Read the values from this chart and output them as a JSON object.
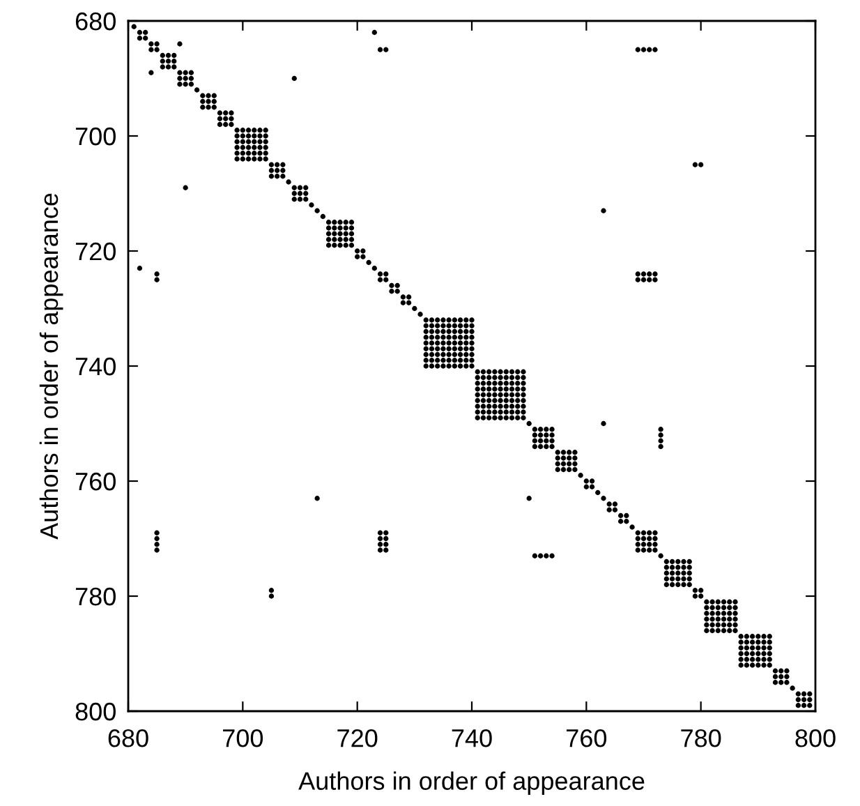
{
  "chart_data": {
    "type": "scatter",
    "xlabel": "Authors in order of appearance",
    "ylabel": "Authors in order of appearance",
    "xlim": [
      680,
      800
    ],
    "ylim": [
      800,
      680
    ],
    "xticks": [
      680,
      700,
      720,
      740,
      760,
      780,
      800
    ],
    "yticks": [
      680,
      700,
      720,
      740,
      760,
      780,
      800
    ],
    "marker": "circle",
    "series": [
      {
        "color": "#000000",
        "x": [
          681,
          682,
          683,
          682,
          683,
          684,
          685,
          684,
          685,
          692,
          708,
          712,
          713,
          714,
          720,
          721,
          720,
          721,
          722,
          723,
          724,
          725,
          724,
          725,
          726,
          727,
          726,
          727,
          728,
          729,
          728,
          729,
          730,
          731,
          750,
          759,
          760,
          761,
          760,
          761,
          762,
          763,
          764,
          765,
          764,
          765,
          766,
          767,
          766,
          767,
          768,
          773,
          779,
          780,
          779,
          780,
          796
        ],
        "values": [
          681,
          682,
          682,
          683,
          683,
          684,
          684,
          685,
          685,
          692,
          708,
          712,
          713,
          714,
          720,
          720,
          721,
          721,
          722,
          723,
          724,
          724,
          725,
          725,
          726,
          726,
          727,
          727,
          728,
          728,
          729,
          729,
          730,
          731,
          750,
          759,
          760,
          760,
          761,
          761,
          762,
          763,
          764,
          764,
          765,
          765,
          766,
          766,
          767,
          767,
          768,
          773,
          779,
          779,
          780,
          780,
          796
        ]
      },
      {
        "color": "#000000",
        "x": [
          689,
          684,
          709,
          690,
          723,
          682,
          724,
          725,
          685,
          685,
          769,
          770,
          771,
          772,
          685,
          685,
          685,
          685,
          779,
          780,
          705,
          705,
          763,
          713,
          769,
          770,
          771,
          772,
          769,
          770,
          771,
          772,
          724,
          724,
          724,
          724,
          725,
          725,
          725,
          725,
          763,
          750,
          773,
          773,
          773,
          773,
          751,
          752,
          753,
          754
        ],
        "values": [
          684,
          689,
          690,
          709,
          682,
          723,
          685,
          685,
          724,
          725,
          685,
          685,
          685,
          685,
          769,
          770,
          771,
          772,
          705,
          705,
          779,
          780,
          713,
          763,
          724,
          724,
          724,
          724,
          725,
          725,
          725,
          725,
          769,
          770,
          771,
          772,
          769,
          770,
          771,
          772,
          750,
          763,
          751,
          752,
          753,
          754,
          773,
          773,
          773,
          773
        ]
      },
      {
        "color": "#000000",
        "x": [
          686,
          687,
          688,
          686,
          687,
          688,
          686,
          687,
          688
        ],
        "values": [
          686,
          686,
          686,
          687,
          687,
          687,
          688,
          688,
          688
        ]
      },
      {
        "color": "#000000",
        "x": [
          689,
          690,
          691,
          689,
          690,
          691,
          689,
          690,
          691
        ],
        "values": [
          689,
          689,
          689,
          690,
          690,
          690,
          691,
          691,
          691
        ]
      },
      {
        "color": "#000000",
        "x": [
          693,
          694,
          695,
          693,
          694,
          695,
          693,
          694,
          695
        ],
        "values": [
          693,
          693,
          693,
          694,
          694,
          694,
          695,
          695,
          695
        ]
      },
      {
        "color": "#000000",
        "x": [
          696,
          697,
          698,
          696,
          697,
          698,
          696,
          697,
          698
        ],
        "values": [
          696,
          696,
          696,
          697,
          697,
          697,
          698,
          698,
          698
        ]
      },
      {
        "color": "#000000",
        "x": [
          699,
          700,
          701,
          702,
          703,
          704,
          699,
          700,
          701,
          702,
          703,
          704,
          699,
          700,
          701,
          702,
          703,
          704,
          699,
          700,
          701,
          702,
          703,
          704,
          699,
          700,
          701,
          702,
          703,
          704,
          699,
          700,
          701,
          702,
          703,
          704
        ],
        "values": [
          699,
          699,
          699,
          699,
          699,
          699,
          700,
          700,
          700,
          700,
          700,
          700,
          701,
          701,
          701,
          701,
          701,
          701,
          702,
          702,
          702,
          702,
          702,
          702,
          703,
          703,
          703,
          703,
          703,
          703,
          704,
          704,
          704,
          704,
          704,
          704
        ]
      },
      {
        "color": "#000000",
        "x": [
          705,
          706,
          707,
          705,
          706,
          707,
          705,
          706,
          707
        ],
        "values": [
          705,
          705,
          705,
          706,
          706,
          706,
          707,
          707,
          707
        ]
      },
      {
        "color": "#000000",
        "x": [
          709,
          710,
          711,
          709,
          710,
          711,
          709,
          710,
          711
        ],
        "values": [
          709,
          709,
          709,
          710,
          710,
          710,
          711,
          711,
          711
        ]
      },
      {
        "color": "#000000",
        "x": [
          715,
          716,
          717,
          718,
          719,
          715,
          716,
          717,
          718,
          719,
          715,
          716,
          717,
          718,
          719,
          715,
          716,
          717,
          718,
          719,
          715,
          716,
          717,
          718,
          719
        ],
        "values": [
          715,
          715,
          715,
          715,
          715,
          716,
          716,
          716,
          716,
          716,
          717,
          717,
          717,
          717,
          717,
          718,
          718,
          718,
          718,
          718,
          719,
          719,
          719,
          719,
          719
        ]
      },
      {
        "color": "#000000",
        "x": [
          732,
          733,
          734,
          735,
          736,
          737,
          738,
          739,
          740,
          732,
          733,
          734,
          735,
          736,
          737,
          738,
          739,
          740,
          732,
          733,
          734,
          735,
          736,
          737,
          738,
          739,
          740,
          732,
          733,
          734,
          735,
          736,
          737,
          738,
          739,
          740,
          732,
          733,
          734,
          735,
          736,
          737,
          738,
          739,
          740,
          732,
          733,
          734,
          735,
          736,
          737,
          738,
          739,
          740,
          732,
          733,
          734,
          735,
          736,
          737,
          738,
          739,
          740,
          732,
          733,
          734,
          735,
          736,
          737,
          738,
          739,
          740,
          732,
          733,
          734,
          735,
          736,
          737,
          738,
          739,
          740
        ],
        "values": [
          732,
          732,
          732,
          732,
          732,
          732,
          732,
          732,
          732,
          733,
          733,
          733,
          733,
          733,
          733,
          733,
          733,
          733,
          734,
          734,
          734,
          734,
          734,
          734,
          734,
          734,
          734,
          735,
          735,
          735,
          735,
          735,
          735,
          735,
          735,
          735,
          736,
          736,
          736,
          736,
          736,
          736,
          736,
          736,
          736,
          737,
          737,
          737,
          737,
          737,
          737,
          737,
          737,
          737,
          738,
          738,
          738,
          738,
          738,
          738,
          738,
          738,
          738,
          739,
          739,
          739,
          739,
          739,
          739,
          739,
          739,
          739,
          740,
          740,
          740,
          740,
          740,
          740,
          740,
          740,
          740
        ]
      },
      {
        "color": "#000000",
        "x": [
          741,
          742,
          743,
          744,
          745,
          746,
          747,
          748,
          749,
          741,
          742,
          743,
          744,
          745,
          746,
          747,
          748,
          749,
          741,
          742,
          743,
          744,
          745,
          746,
          747,
          748,
          749,
          741,
          742,
          743,
          744,
          745,
          746,
          747,
          748,
          749,
          741,
          742,
          743,
          744,
          745,
          746,
          747,
          748,
          749,
          741,
          742,
          743,
          744,
          745,
          746,
          747,
          748,
          749,
          741,
          742,
          743,
          744,
          745,
          746,
          747,
          748,
          749,
          741,
          742,
          743,
          744,
          745,
          746,
          747,
          748,
          749,
          741,
          742,
          743,
          744,
          745,
          746,
          747,
          748,
          749
        ],
        "values": [
          741,
          741,
          741,
          741,
          741,
          741,
          741,
          741,
          741,
          742,
          742,
          742,
          742,
          742,
          742,
          742,
          742,
          742,
          743,
          743,
          743,
          743,
          743,
          743,
          743,
          743,
          743,
          744,
          744,
          744,
          744,
          744,
          744,
          744,
          744,
          744,
          745,
          745,
          745,
          745,
          745,
          745,
          745,
          745,
          745,
          746,
          746,
          746,
          746,
          746,
          746,
          746,
          746,
          746,
          747,
          747,
          747,
          747,
          747,
          747,
          747,
          747,
          747,
          748,
          748,
          748,
          748,
          748,
          748,
          748,
          748,
          748,
          749,
          749,
          749,
          749,
          749,
          749,
          749,
          749,
          749
        ]
      },
      {
        "color": "#000000",
        "x": [
          751,
          752,
          753,
          754,
          751,
          752,
          753,
          754,
          751,
          752,
          753,
          754,
          751,
          752,
          753,
          754
        ],
        "values": [
          751,
          751,
          751,
          751,
          752,
          752,
          752,
          752,
          753,
          753,
          753,
          753,
          754,
          754,
          754,
          754
        ]
      },
      {
        "color": "#000000",
        "x": [
          755,
          756,
          757,
          758,
          755,
          756,
          757,
          758,
          755,
          756,
          757,
          758,
          755,
          756,
          757,
          758
        ],
        "values": [
          755,
          755,
          755,
          755,
          756,
          756,
          756,
          756,
          757,
          757,
          757,
          757,
          758,
          758,
          758,
          758
        ]
      },
      {
        "color": "#000000",
        "x": [
          769,
          770,
          771,
          772,
          769,
          770,
          771,
          772,
          769,
          770,
          771,
          772,
          769,
          770,
          771,
          772
        ],
        "values": [
          769,
          769,
          769,
          769,
          770,
          770,
          770,
          770,
          771,
          771,
          771,
          771,
          772,
          772,
          772,
          772
        ]
      },
      {
        "color": "#000000",
        "x": [
          774,
          775,
          776,
          777,
          778,
          774,
          775,
          776,
          777,
          778,
          774,
          775,
          776,
          777,
          778,
          774,
          775,
          776,
          777,
          778,
          774,
          775,
          776,
          777,
          778
        ],
        "values": [
          774,
          774,
          774,
          774,
          774,
          775,
          775,
          775,
          775,
          775,
          776,
          776,
          776,
          776,
          776,
          777,
          777,
          777,
          777,
          777,
          778,
          778,
          778,
          778,
          778
        ]
      },
      {
        "color": "#000000",
        "x": [
          781,
          782,
          783,
          784,
          785,
          786,
          781,
          782,
          783,
          784,
          785,
          786,
          781,
          782,
          783,
          784,
          785,
          786,
          781,
          782,
          783,
          784,
          785,
          786,
          781,
          782,
          783,
          784,
          785,
          786,
          781,
          782,
          783,
          784,
          785,
          786
        ],
        "values": [
          781,
          781,
          781,
          781,
          781,
          781,
          782,
          782,
          782,
          782,
          782,
          782,
          783,
          783,
          783,
          783,
          783,
          783,
          784,
          784,
          784,
          784,
          784,
          784,
          785,
          785,
          785,
          785,
          785,
          785,
          786,
          786,
          786,
          786,
          786,
          786
        ]
      },
      {
        "color": "#000000",
        "x": [
          787,
          788,
          789,
          790,
          791,
          792,
          787,
          788,
          789,
          790,
          791,
          792,
          787,
          788,
          789,
          790,
          791,
          792,
          787,
          788,
          789,
          790,
          791,
          792,
          787,
          788,
          789,
          790,
          791,
          792,
          787,
          788,
          789,
          790,
          791,
          792
        ],
        "values": [
          787,
          787,
          787,
          787,
          787,
          787,
          788,
          788,
          788,
          788,
          788,
          788,
          789,
          789,
          789,
          789,
          789,
          789,
          790,
          790,
          790,
          790,
          790,
          790,
          791,
          791,
          791,
          791,
          791,
          791,
          792,
          792,
          792,
          792,
          792,
          792
        ]
      },
      {
        "color": "#000000",
        "x": [
          793,
          794,
          795,
          793,
          794,
          795,
          793,
          794,
          795
        ],
        "values": [
          793,
          793,
          793,
          794,
          794,
          794,
          795,
          795,
          795
        ]
      },
      {
        "color": "#000000",
        "x": [
          797,
          798,
          799,
          797,
          798,
          799,
          797,
          798,
          799
        ],
        "values": [
          797,
          797,
          797,
          798,
          798,
          798,
          799,
          799,
          799
        ]
      }
    ]
  }
}
